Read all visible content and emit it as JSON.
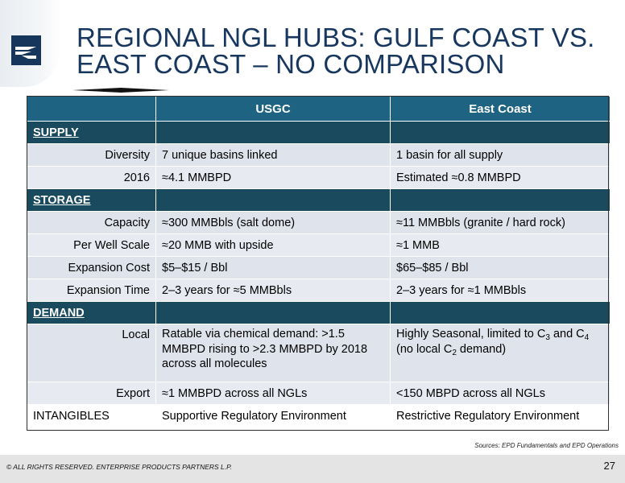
{
  "slide": {
    "title_line1": "REGIONAL NGL HUBS:  GULF COAST VS.",
    "title_line2": "EAST COAST – NO COMPARISON",
    "colors": {
      "title": "#17375e",
      "header": "#1f6382",
      "section": "#1a4a5e",
      "row": "#dfe3eb",
      "logo": "#16365c"
    }
  },
  "table": {
    "col_usgc": "USGC",
    "col_east": "East Coast",
    "supply": {
      "label": "SUPPLY",
      "rows": [
        {
          "label": "Diversity",
          "usgc": "7 unique basins linked",
          "east": "1 basin for all supply"
        },
        {
          "label": "2016",
          "usgc": "≈4.1 MMBPD",
          "east": "Estimated ≈0.8 MMBPD"
        }
      ]
    },
    "storage": {
      "label": "STORAGE",
      "rows": [
        {
          "label": "Capacity",
          "usgc": "≈300 MMBbls (salt dome)",
          "east": "≈11 MMBbls (granite / hard rock)"
        },
        {
          "label": "Per Well Scale",
          "usgc": "≈20 MMB with upside",
          "east": "≈1 MMB"
        },
        {
          "label": "Expansion Cost",
          "usgc": "$5–$15 / Bbl",
          "east": "$65–$85 / Bbl"
        },
        {
          "label": "Expansion Time",
          "usgc": "2–3 years for ≈5 MMBbls",
          "east": "2–3 years for ≈1 MMBbls"
        }
      ]
    },
    "demand": {
      "label": "DEMAND",
      "local": {
        "label": "Local",
        "usgc": "Ratable via chemical demand: >1.5 MMBPD rising to >2.3 MMBPD by 2018 across all molecules",
        "east_a": "Highly Seasonal, limited to C",
        "east_sub1": "3",
        "east_b": " and C",
        "east_sub2": "4",
        "east_c": "(no local C",
        "east_sub3": "2",
        "east_d": " demand)"
      },
      "export": {
        "label": "Export",
        "usgc": "≈1 MMBPD across all NGLs",
        "east": "<150 MBPD across all NGLs"
      }
    },
    "intangibles": {
      "label": "INTANGIBLES",
      "usgc": "Supportive Regulatory Environment",
      "east": "Restrictive Regulatory Environment"
    }
  },
  "footer": {
    "sources": "Sources:  EPD Fundamentals and EPD Operations",
    "copyright": "© ALL RIGHTS RESERVED. ENTERPRISE PRODUCTS PARTNERS L.P.",
    "page": "27"
  }
}
